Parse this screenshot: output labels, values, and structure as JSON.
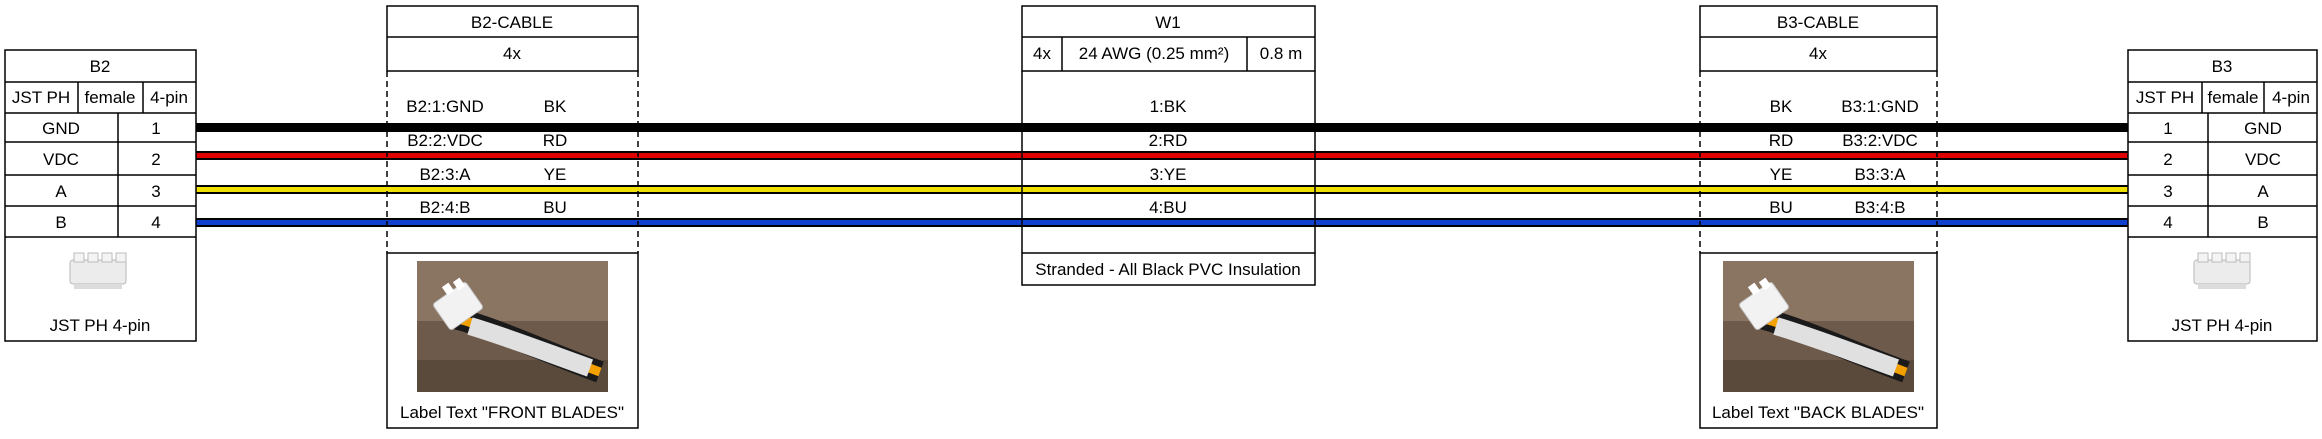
{
  "connectors": {
    "left": {
      "title": "B2",
      "type": "JST PH",
      "gender": "female",
      "pins_count": "4-pin",
      "rows": [
        {
          "signal": "GND",
          "pin": "1"
        },
        {
          "signal": "VDC",
          "pin": "2"
        },
        {
          "signal": "A",
          "pin": "3"
        },
        {
          "signal": "B",
          "pin": "4"
        }
      ],
      "image_label": "JST PH 4-pin"
    },
    "right": {
      "title": "B3",
      "type": "JST PH",
      "gender": "female",
      "pins_count": "4-pin",
      "rows": [
        {
          "pin": "1",
          "signal": "GND"
        },
        {
          "pin": "2",
          "signal": "VDC"
        },
        {
          "pin": "3",
          "signal": "A"
        },
        {
          "pin": "4",
          "signal": "B"
        }
      ],
      "image_label": "JST PH 4-pin"
    }
  },
  "cables": {
    "left": {
      "title": "B2-CABLE",
      "count": "4x",
      "wires": [
        {
          "end": "B2:1:GND",
          "color": "BK"
        },
        {
          "end": "B2:2:VDC",
          "color": "RD"
        },
        {
          "end": "B2:3:A",
          "color": "YE"
        },
        {
          "end": "B2:4:B",
          "color": "BU"
        }
      ],
      "label_text": "Label Text \"FRONT BLADES\""
    },
    "main": {
      "title": "W1",
      "count": "4x",
      "gauge": "24 AWG (0.25 mm²)",
      "length": "0.8 m",
      "wires": [
        "1:BK",
        "2:RD",
        "3:YE",
        "4:BU"
      ],
      "note": "Stranded - All Black PVC Insulation"
    },
    "right": {
      "title": "B3-CABLE",
      "count": "4x",
      "wires": [
        {
          "color": "BK",
          "end": "B3:1:GND"
        },
        {
          "color": "RD",
          "end": "B3:2:VDC"
        },
        {
          "color": "YE",
          "end": "B3:3:A"
        },
        {
          "color": "BU",
          "end": "B3:4:B"
        }
      ],
      "label_text": "Label Text \"BACK BLADES\""
    }
  },
  "wire_colors": {
    "BK": "#000000",
    "RD": "#e00000",
    "YE": "#f0e000",
    "BU": "#1040d0"
  }
}
